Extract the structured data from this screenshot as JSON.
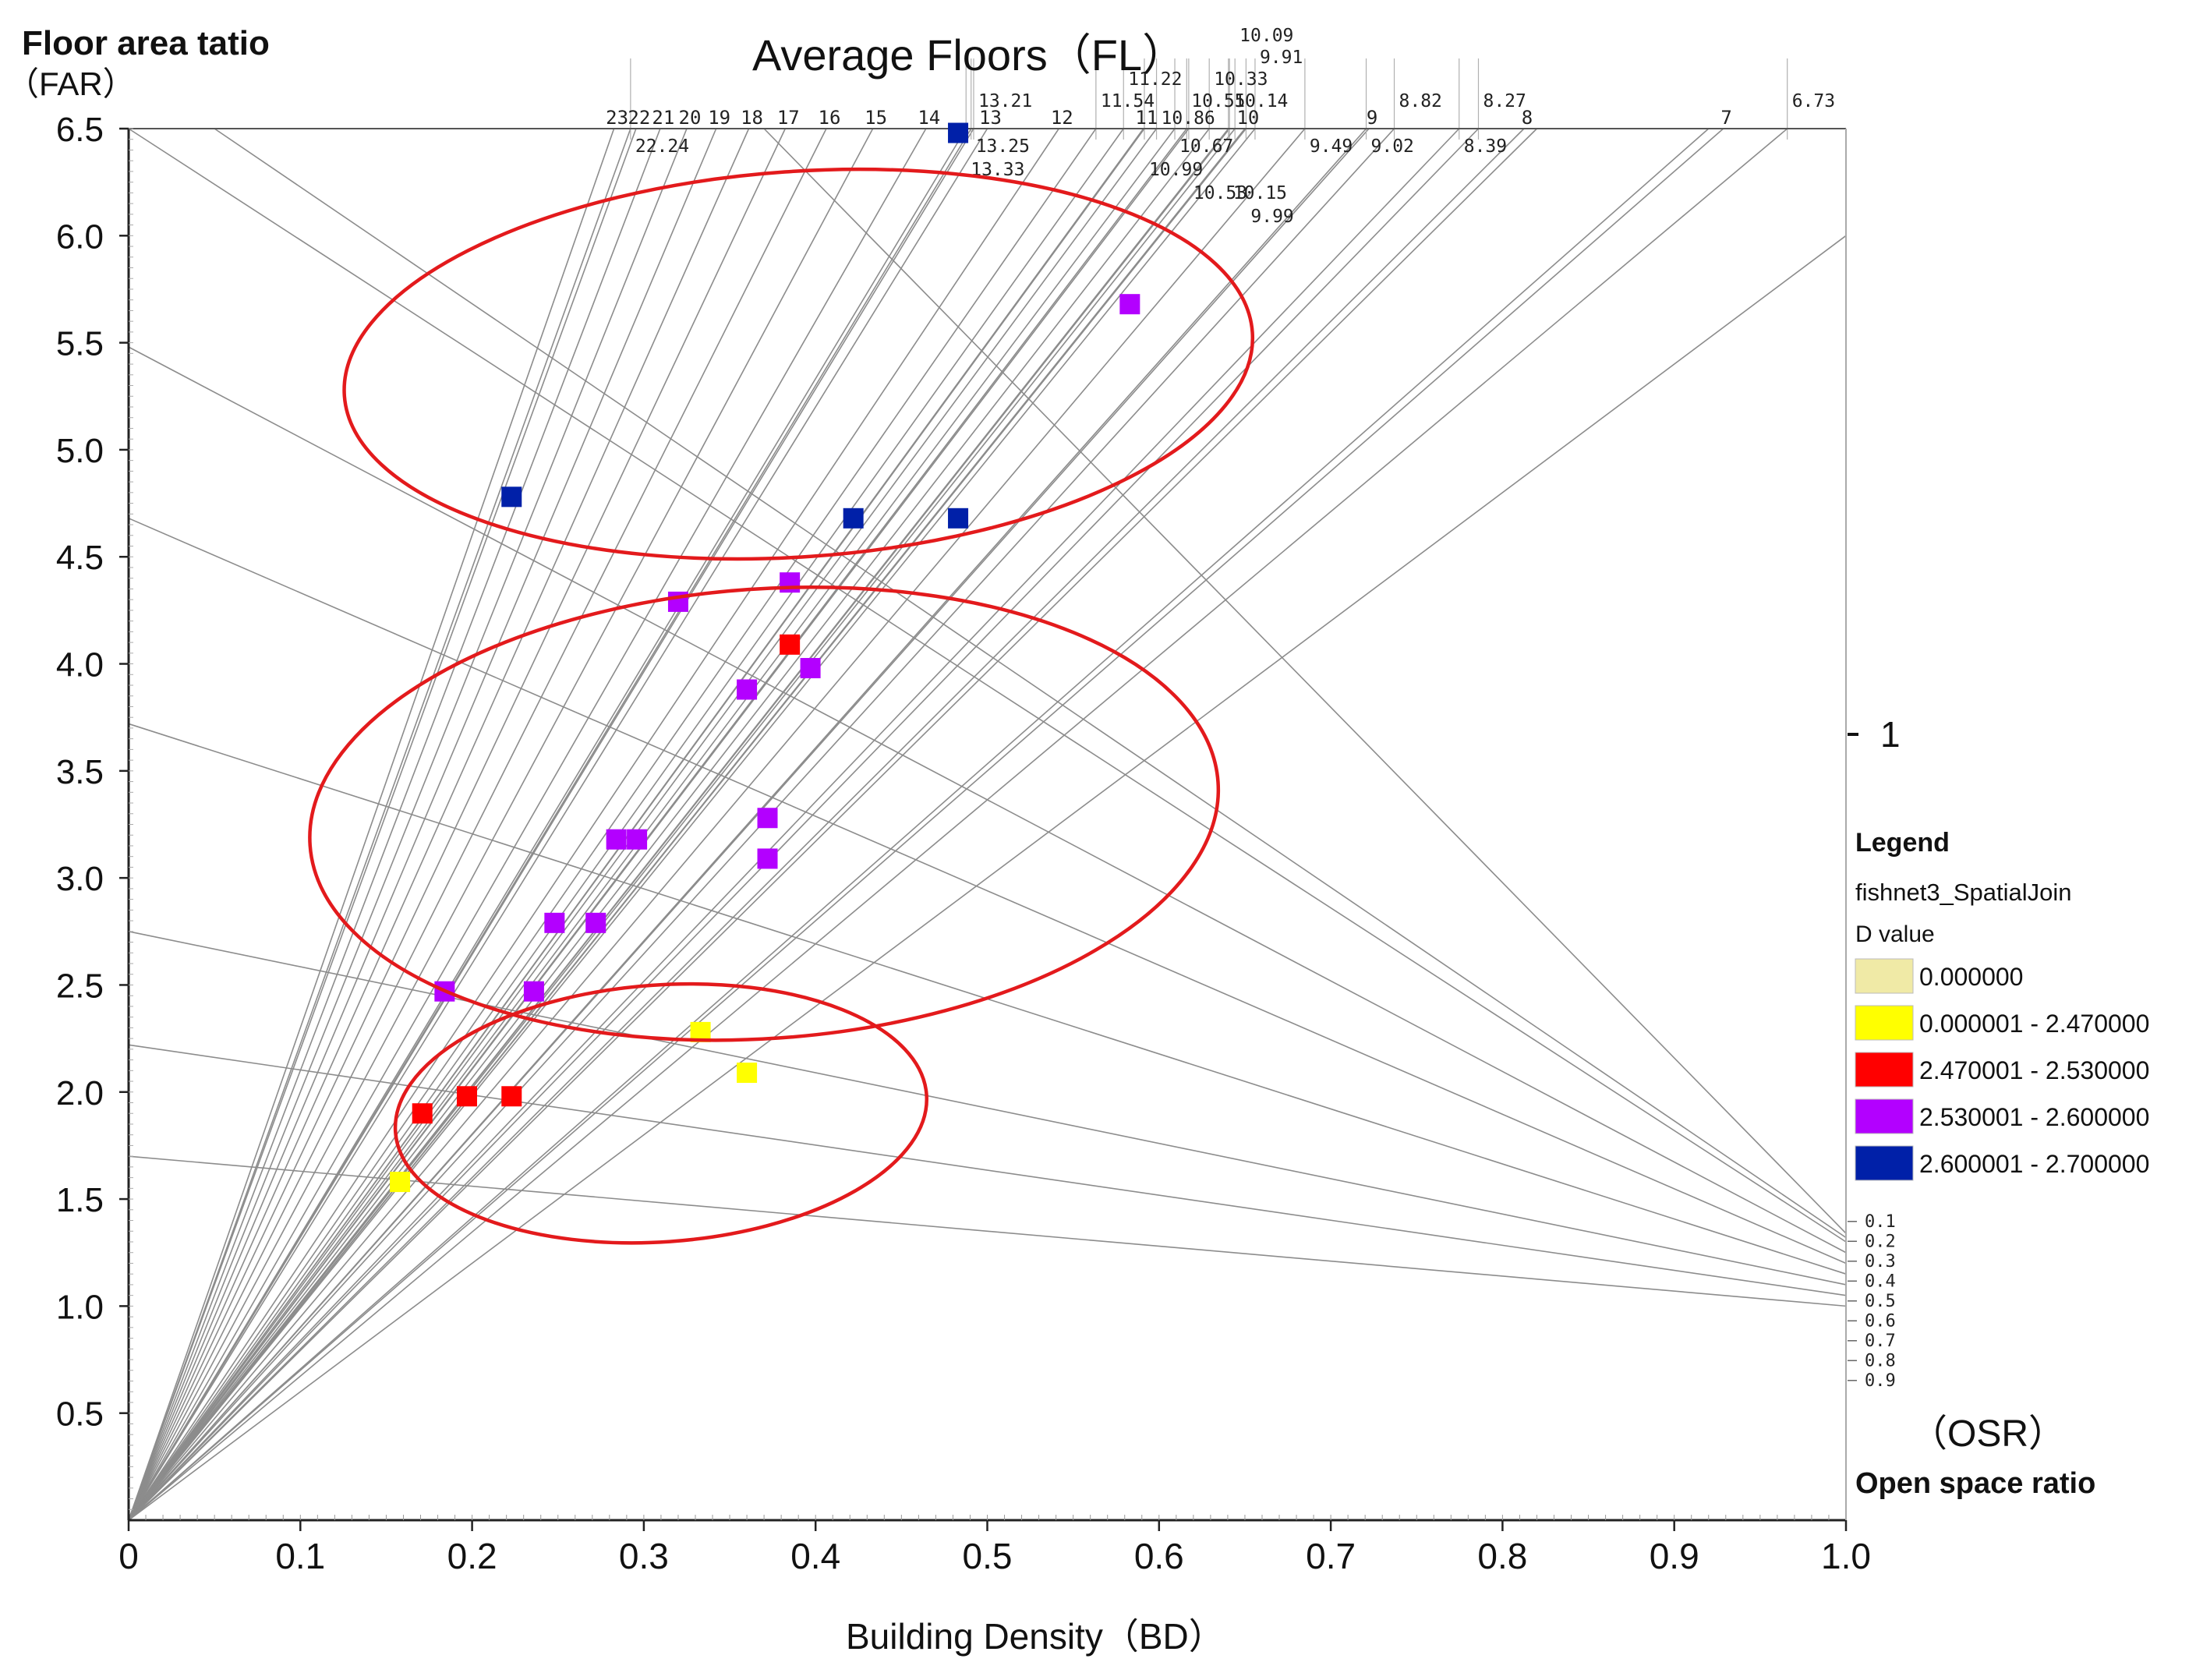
{
  "chart_data": {
    "type": "scatter",
    "title": "Average Floors（FL）",
    "ylabel_line1": "Floor area tatio",
    "ylabel_line2": "（FAR）",
    "xlabel": "Building Density（BD）",
    "osr_label_short": "（OSR）",
    "osr_label_long": "Open space ratio",
    "osr_marker_label": "1",
    "xlim": [
      0,
      1.0
    ],
    "ylim": [
      0,
      6.5
    ],
    "x_ticks": [
      {
        "v": 0,
        "label": "0"
      },
      {
        "v": 0.1,
        "label": "0.1"
      },
      {
        "v": 0.2,
        "label": "0.2"
      },
      {
        "v": 0.3,
        "label": "0.3"
      },
      {
        "v": 0.4,
        "label": "0.4"
      },
      {
        "v": 0.5,
        "label": "0.5"
      },
      {
        "v": 0.6,
        "label": "0.6"
      },
      {
        "v": 0.7,
        "label": "0.7"
      },
      {
        "v": 0.8,
        "label": "0.8"
      },
      {
        "v": 0.9,
        "label": "0.9"
      },
      {
        "v": 1.0,
        "label": "1.0"
      }
    ],
    "y_ticks": [
      {
        "v": 0.5,
        "label": "0.5"
      },
      {
        "v": 1.0,
        "label": "1.0"
      },
      {
        "v": 1.5,
        "label": "1.5"
      },
      {
        "v": 2.0,
        "label": "2.0"
      },
      {
        "v": 2.5,
        "label": "2.5"
      },
      {
        "v": 3.0,
        "label": "3.0"
      },
      {
        "v": 3.5,
        "label": "3.5"
      },
      {
        "v": 4.0,
        "label": "4.0"
      },
      {
        "v": 4.5,
        "label": "4.5"
      },
      {
        "v": 5.0,
        "label": "5.0"
      },
      {
        "v": 5.5,
        "label": "5.5"
      },
      {
        "v": 6.0,
        "label": "6.0"
      },
      {
        "v": 6.5,
        "label": "6.5"
      }
    ],
    "floor_lines": [
      {
        "fl": 23,
        "label": "23"
      },
      {
        "fl": 22,
        "label": "22"
      },
      {
        "fl": 21,
        "label": "21"
      },
      {
        "fl": 20,
        "label": "20"
      },
      {
        "fl": 19,
        "label": "19"
      },
      {
        "fl": 18,
        "label": "18"
      },
      {
        "fl": 17,
        "label": "17"
      },
      {
        "fl": 16,
        "label": "16"
      },
      {
        "fl": 15,
        "label": "15"
      },
      {
        "fl": 14,
        "label": "14"
      },
      {
        "fl": 13,
        "label": "13"
      },
      {
        "fl": 12,
        "label": "12"
      },
      {
        "fl": 11,
        "label": "11"
      },
      {
        "fl": 10,
        "label": "10"
      },
      {
        "fl": 9,
        "label": "9"
      },
      {
        "fl": 8,
        "label": "8"
      },
      {
        "fl": 7,
        "label": "7"
      }
    ],
    "floor_extra_lines": [
      {
        "fl": 22.24,
        "label": "22.24",
        "label_pos": "below"
      },
      {
        "fl": 13.21,
        "label": "13.21",
        "label_pos": "above"
      },
      {
        "fl": 13.25,
        "label": "13.25",
        "label_pos": "below"
      },
      {
        "fl": 13.33,
        "label": "13.33",
        "label_pos": "below2"
      },
      {
        "fl": 11.54,
        "label": "11.54",
        "label_pos": "above"
      },
      {
        "fl": 11.22,
        "label": "11.22",
        "label_pos": "above2"
      },
      {
        "fl": 10.55,
        "label": "10.55",
        "label_pos": "above"
      },
      {
        "fl": 10.86,
        "label": "10.86",
        "label_pos": "inline"
      },
      {
        "fl": 10.67,
        "label": "10.67",
        "label_pos": "below"
      },
      {
        "fl": 10.99,
        "label": "10.99",
        "label_pos": "below2"
      },
      {
        "fl": 10.53,
        "label": "10.53",
        "label_pos": "below3"
      },
      {
        "fl": 10.33,
        "label": "10.33",
        "label_pos": "above2"
      },
      {
        "fl": 10.14,
        "label": "10.14",
        "label_pos": "above"
      },
      {
        "fl": 10.09,
        "label": "10.09",
        "label_pos": "above4"
      },
      {
        "fl": 10.15,
        "label": "10.15",
        "label_pos": "below3"
      },
      {
        "fl": 9.91,
        "label": "9.91",
        "label_pos": "above3"
      },
      {
        "fl": 9.99,
        "label": "9.99",
        "label_pos": "below4"
      },
      {
        "fl": 9.49,
        "label": "9.49",
        "label_pos": "below"
      },
      {
        "fl": 9.02,
        "label": "9.02",
        "label_pos": "below"
      },
      {
        "fl": 8.82,
        "label": "8.82",
        "label_pos": "above"
      },
      {
        "fl": 8.39,
        "label": "8.39",
        "label_pos": "below"
      },
      {
        "fl": 8.27,
        "label": "8.27",
        "label_pos": "above"
      },
      {
        "fl": 6.73,
        "label": "6.73",
        "label_pos": "above"
      }
    ],
    "osr_lines": [
      {
        "osr": 0.1,
        "label": "0.1"
      },
      {
        "osr": 0.2,
        "label": "0.2"
      },
      {
        "osr": 0.3,
        "label": "0.3"
      },
      {
        "osr": 0.4,
        "label": "0.4"
      },
      {
        "osr": 0.5,
        "label": "0.5"
      },
      {
        "osr": 0.6,
        "label": "0.6"
      },
      {
        "osr": 0.7,
        "label": "0.7"
      },
      {
        "osr": 0.8,
        "label": "0.8"
      },
      {
        "osr": 0.9,
        "label": "0.9"
      }
    ],
    "osr_fan_far_at_bd0": [
      6.5,
      5.48,
      4.68,
      3.72,
      2.75,
      2.22,
      1.7
    ],
    "groups": [
      {
        "name": "upper",
        "cx": 0.39,
        "cy": 5.4,
        "rx": 0.265,
        "ry": 0.9,
        "color": "#e31a1c"
      },
      {
        "name": "middle",
        "cx": 0.37,
        "cy": 3.3,
        "rx": 0.265,
        "ry": 1.05,
        "color": "#e31a1c"
      },
      {
        "name": "lower",
        "cx": 0.31,
        "cy": 1.9,
        "rx": 0.155,
        "ry": 0.6,
        "color": "#e31a1c"
      }
    ],
    "legend": {
      "title": "Legend",
      "layer": "fishnet3_SpatialJoin",
      "field": "D value",
      "classes": [
        {
          "label": "0.000000",
          "color": "#f0eaa6"
        },
        {
          "label": "0.000001 - 2.470000",
          "color": "#ffff00"
        },
        {
          "label": "2.470001 - 2.530000",
          "color": "#ff0000"
        },
        {
          "label": "2.530001 - 2.600000",
          "color": "#b300ff"
        },
        {
          "label": "2.600001 - 2.700000",
          "color": "#0020a8"
        }
      ]
    },
    "series": [
      {
        "name": "0.000001 - 2.470000",
        "color": "#ffff00",
        "points": [
          [
            0.158,
            1.58
          ],
          [
            0.333,
            2.28
          ],
          [
            0.36,
            2.09
          ]
        ]
      },
      {
        "name": "2.470001 - 2.530000",
        "color": "#ff0000",
        "points": [
          [
            0.171,
            1.9
          ],
          [
            0.197,
            1.98
          ],
          [
            0.223,
            1.98
          ],
          [
            0.385,
            4.09
          ]
        ]
      },
      {
        "name": "2.530001 - 2.600000",
        "color": "#b300ff",
        "points": [
          [
            0.184,
            2.47
          ],
          [
            0.236,
            2.47
          ],
          [
            0.248,
            2.79
          ],
          [
            0.272,
            2.79
          ],
          [
            0.284,
            3.18
          ],
          [
            0.296,
            3.18
          ],
          [
            0.32,
            4.29
          ],
          [
            0.36,
            3.88
          ],
          [
            0.372,
            3.28
          ],
          [
            0.372,
            3.09
          ],
          [
            0.385,
            4.38
          ],
          [
            0.397,
            3.98
          ],
          [
            0.583,
            5.68
          ]
        ]
      },
      {
        "name": "2.600001 - 2.700000",
        "color": "#0020a8",
        "points": [
          [
            0.223,
            4.78
          ],
          [
            0.422,
            4.68
          ],
          [
            0.483,
            4.68
          ],
          [
            0.483,
            6.48
          ]
        ]
      }
    ]
  }
}
